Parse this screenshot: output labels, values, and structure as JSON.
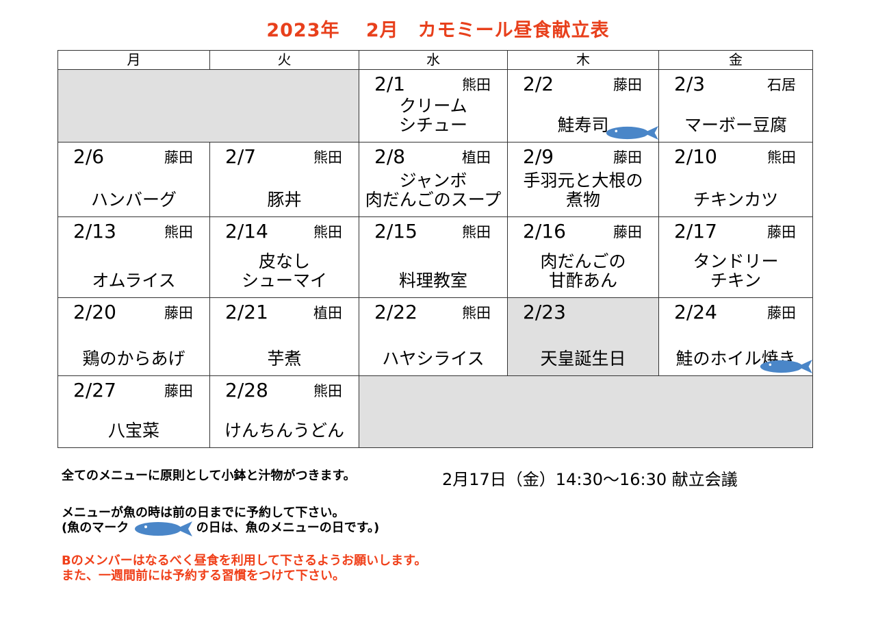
{
  "title": "2023年　 2月　カモミール昼食献立表",
  "weekdays": [
    "月",
    "火",
    "水",
    "木",
    "金"
  ],
  "weeks": [
    [
      null,
      null,
      {
        "date": "2/1",
        "cook": "熊田",
        "dish": [
          "クリーム",
          "シチュー"
        ]
      },
      {
        "date": "2/2",
        "cook": "藤田",
        "dish": [
          "鮭寿司"
        ],
        "fish": true
      },
      {
        "date": "2/3",
        "cook": "石居",
        "dish": [
          "マーボー豆腐"
        ]
      }
    ],
    [
      {
        "date": "2/6",
        "cook": "藤田",
        "dish": [
          "ハンバーグ"
        ]
      },
      {
        "date": "2/7",
        "cook": "熊田",
        "dish": [
          "豚丼"
        ]
      },
      {
        "date": "2/8",
        "cook": "植田",
        "dish": [
          "ジャンボ",
          "肉だんごのスープ"
        ]
      },
      {
        "date": "2/9",
        "cook": "藤田",
        "dish": [
          "手羽元と大根の",
          "煮物"
        ]
      },
      {
        "date": "2/10",
        "cook": "熊田",
        "dish": [
          "チキンカツ"
        ]
      }
    ],
    [
      {
        "date": "2/13",
        "cook": "熊田",
        "dish": [
          "オムライス"
        ]
      },
      {
        "date": "2/14",
        "cook": "熊田",
        "dish": [
          "皮なし",
          "シューマイ"
        ]
      },
      {
        "date": "2/15",
        "cook": "熊田",
        "dish": [
          "料理教室"
        ]
      },
      {
        "date": "2/16",
        "cook": "藤田",
        "dish": [
          "肉だんごの",
          "甘酢あん"
        ]
      },
      {
        "date": "2/17",
        "cook": "藤田",
        "dish": [
          "タンドリー",
          "チキン"
        ]
      }
    ],
    [
      {
        "date": "2/20",
        "cook": "藤田",
        "dish": [
          "鶏のからあげ"
        ]
      },
      {
        "date": "2/21",
        "cook": "植田",
        "dish": [
          "芋煮"
        ]
      },
      {
        "date": "2/22",
        "cook": "熊田",
        "dish": [
          "ハヤシライス"
        ]
      },
      {
        "date": "2/23",
        "cook": "",
        "dish": [
          "天皇誕生日"
        ],
        "holiday": true
      },
      {
        "date": "2/24",
        "cook": "藤田",
        "dish": [
          "鮭のホイル焼き"
        ],
        "fish": true
      }
    ],
    [
      {
        "date": "2/27",
        "cook": "藤田",
        "dish": [
          "八宝菜"
        ]
      },
      {
        "date": "2/28",
        "cook": "熊田",
        "dish": [
          "けんちんうどん"
        ]
      },
      null,
      null,
      null
    ]
  ],
  "notes": {
    "line1": "全てのメニューに原則として小鉢と汁物がつきます。",
    "line2": "メニューが魚の時は前の日までに予約して下さい。",
    "line3a": "(魚のマーク",
    "line3b": "の日は、魚のメニューの日です。)",
    "line4": "Bのメンバーはなるべく昼食を利用して下さるようお願いします。",
    "line5": "また、一週間前には予約する習慣をつけて下さい。",
    "meeting": "2月17日（金）14:30〜16:30 献立会議"
  },
  "colors": {
    "title": "#e8401c",
    "fish": "#4a86c8",
    "blank": "#e0e0e0"
  }
}
